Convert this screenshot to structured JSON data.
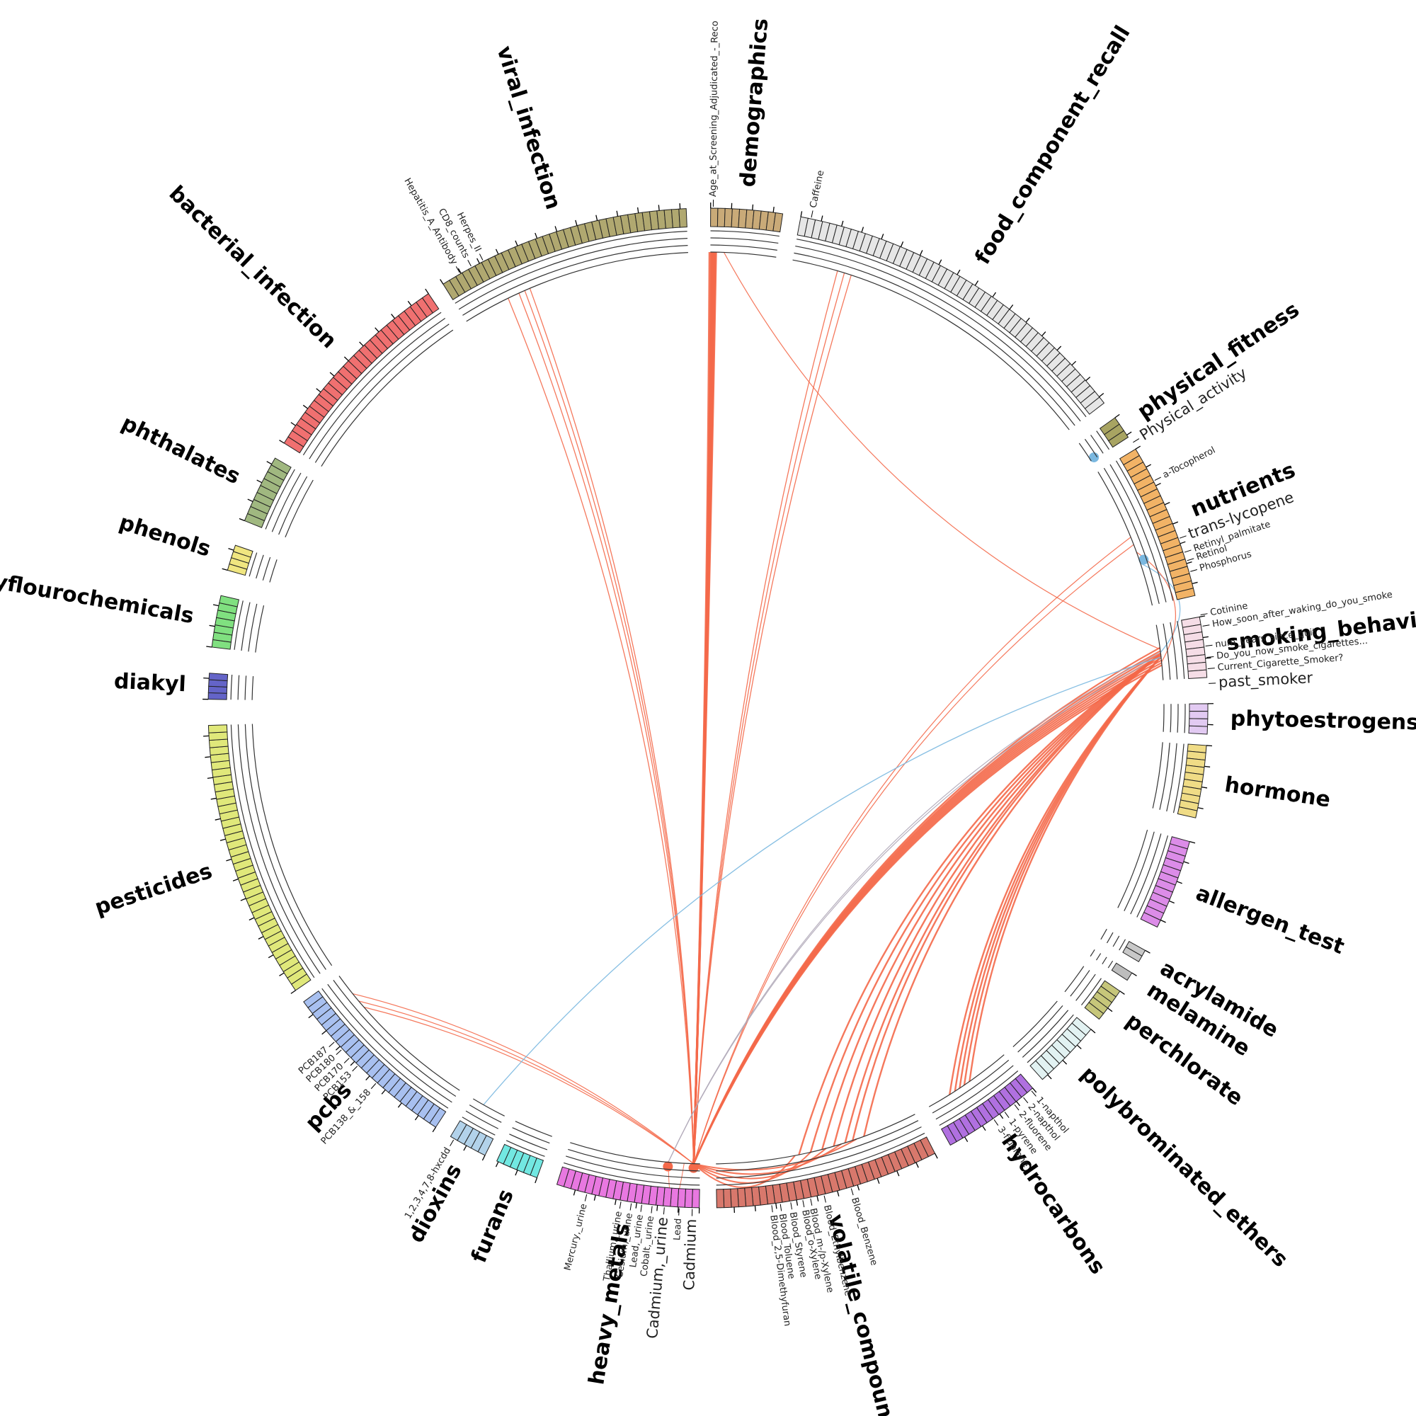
{
  "sectors": [
    {
      "name": "demographics",
      "color": "#c9aa78",
      "variables": [
        {
          "label": "Age_at_Screening_Adjudicated_-_Reco"
        }
      ]
    },
    {
      "name": "food_component_recall",
      "color": "#e6e6e6",
      "variables": [
        {
          "label": "Caffeine"
        }
      ]
    },
    {
      "name": "physical_fitness",
      "color": "#a8a462",
      "variables": [
        {
          "label": "Physical_activity",
          "color": "#6aaee0"
        }
      ]
    },
    {
      "name": "nutrients",
      "color": "#f2b366",
      "variables": [
        {
          "label": "a-Tocopherol"
        },
        {
          "label": "trans-lycopene",
          "color": "#6aaee0"
        },
        {
          "label": "Retinyl_palmitate"
        },
        {
          "label": "Retinol"
        },
        {
          "label": "Phosphorus"
        }
      ]
    },
    {
      "name": "smoking_behavior",
      "color": "#f5dde6",
      "variables": [
        {
          "label": "Cotinine"
        },
        {
          "label": "How_soon_after_waking_do_you_smoke"
        },
        {
          "label": "num_years_since_quit"
        },
        {
          "label": "Do_you_now_smoke_cigarettes..."
        },
        {
          "label": "Current_Cigarette_Smoker?"
        },
        {
          "label": "past_smoker",
          "color": "#f4694a"
        }
      ]
    },
    {
      "name": "phytoestrogens",
      "color": "#e2caf2",
      "variables": []
    },
    {
      "name": "hormone",
      "color": "#f0dc86",
      "variables": []
    },
    {
      "name": "allergen_test",
      "color": "#dc8ce8",
      "variables": []
    },
    {
      "name": "acrylamide",
      "color": "#c8c8c8",
      "variables": []
    },
    {
      "name": "melamine",
      "color": "#bdbdbd",
      "variables": []
    },
    {
      "name": "perchlorate",
      "color": "#c6c67a",
      "variables": []
    },
    {
      "name": "polybrominated_ethers",
      "color": "#e2f2f2",
      "variables": []
    },
    {
      "name": "hydrocarbons",
      "color": "#b070e0",
      "variables": [
        {
          "label": "1-napthol"
        },
        {
          "label": "2-napthol"
        },
        {
          "label": "2-fluorene"
        },
        {
          "label": "1-pyrene"
        },
        {
          "label": "3-fluorene"
        }
      ]
    },
    {
      "name": "volatile_compounds",
      "color": "#d8786c",
      "variables": [
        {
          "label": "Blood_2,5-Dimethyfuran"
        },
        {
          "label": "Blood_Toluene"
        },
        {
          "label": "Blood_Styrene"
        },
        {
          "label": "Blood_o-Xylene"
        },
        {
          "label": "Blood_m-/p-Xylene"
        },
        {
          "label": "Blood_Ethylbenzene"
        },
        {
          "label": "Blood_Benzene"
        }
      ]
    },
    {
      "name": "heavy_metals",
      "color": "#e878e0",
      "variables": [
        {
          "label": "Mercury,_urine"
        },
        {
          "label": "Thallium,_urine"
        },
        {
          "label": "Cesium,_urine"
        },
        {
          "label": "Lead,_urine"
        },
        {
          "label": "Cobalt,_urine"
        },
        {
          "label": "Cadmium,_urine",
          "color": "#f4694a"
        },
        {
          "label": "Lead"
        },
        {
          "label": "Cadmium",
          "color": "#f4694a"
        }
      ]
    },
    {
      "name": "furans",
      "color": "#72e8e2",
      "variables": []
    },
    {
      "name": "dioxins",
      "color": "#b2d2ea",
      "variables": [
        {
          "label": "1,2,3,4,7,8-hxcdd"
        }
      ]
    },
    {
      "name": "pcbs",
      "color": "#a8c0f0",
      "variables": [
        {
          "label": "PCB187"
        },
        {
          "label": "PCB180"
        },
        {
          "label": "PCB170"
        },
        {
          "label": "PCB153"
        },
        {
          "label": "PCB138_&_158"
        }
      ]
    },
    {
      "name": "pesticides",
      "color": "#e0e87a",
      "variables": []
    },
    {
      "name": "diakyl",
      "color": "#6464c8",
      "variables": []
    },
    {
      "name": "polyflourochemicals",
      "color": "#80e080",
      "variables": []
    },
    {
      "name": "phenols",
      "color": "#f0e680",
      "variables": []
    },
    {
      "name": "phthalates",
      "color": "#a0b880",
      "variables": []
    },
    {
      "name": "bacterial_infection",
      "color": "#f07070",
      "variables": []
    },
    {
      "name": "viral_infection",
      "color": "#b0a870",
      "variables": [
        {
          "label": "Herpes_II"
        },
        {
          "label": "CD8_counts"
        },
        {
          "label": "Hepatitis_A_Antibody"
        }
      ]
    }
  ]
}
